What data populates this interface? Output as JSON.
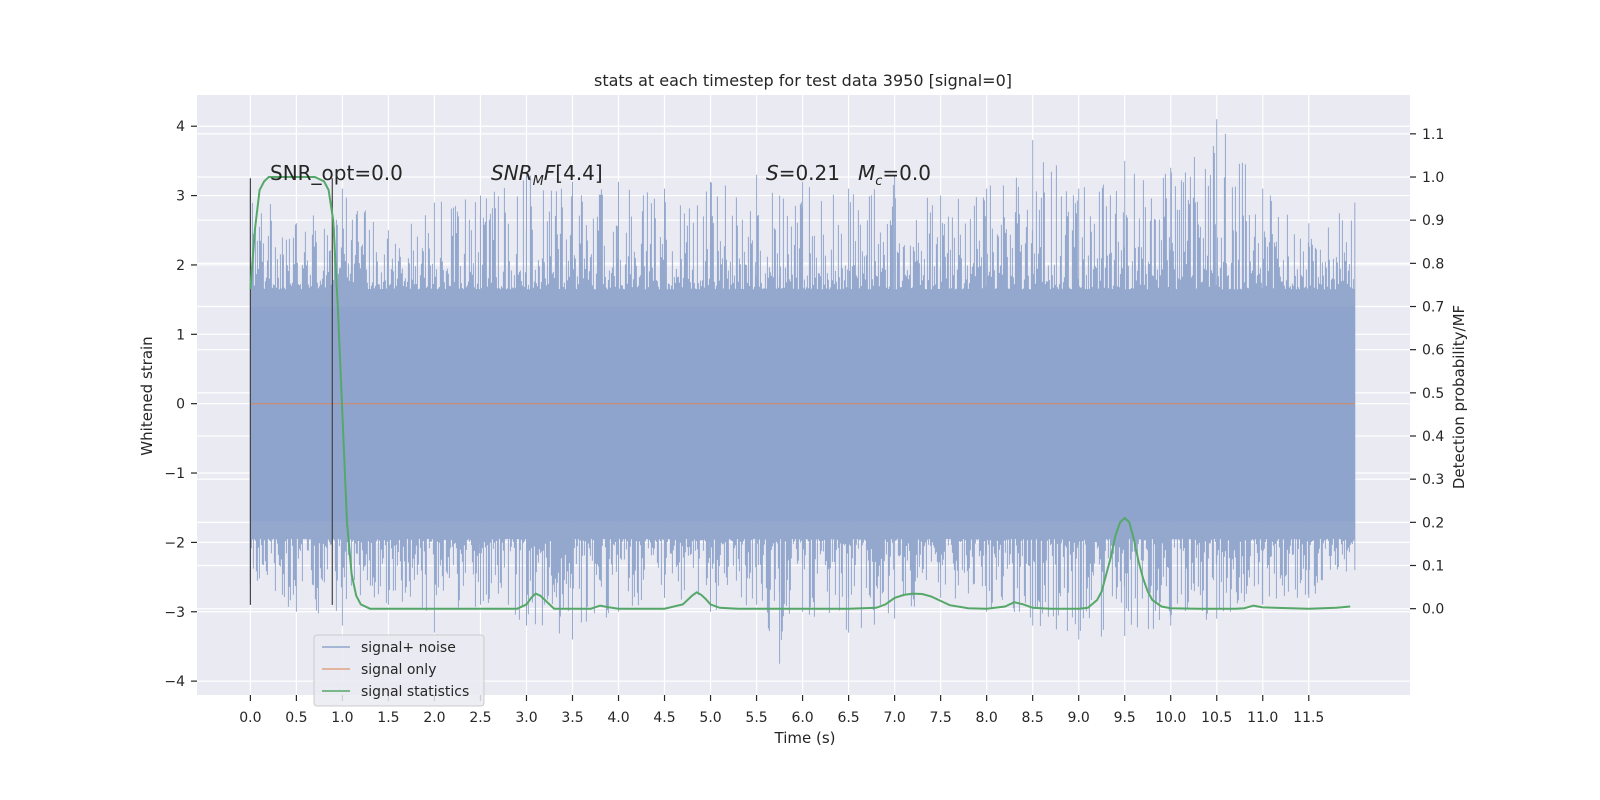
{
  "chart_data": {
    "type": "line",
    "title": "stats at each timestep for test data 3950 [signal=0]",
    "xlabel": "Time (s)",
    "ylabel_left": "Whitened strain",
    "ylabel_right": "Detection probability/MF",
    "xlim": [
      -0.58,
      12.6
    ],
    "ylim_left": [
      -4.2,
      4.45
    ],
    "ylim_right": [
      -0.2,
      1.19
    ],
    "x_ticks": [
      "0.0",
      "0.5",
      "1.0",
      "1.5",
      "2.0",
      "2.5",
      "3.0",
      "3.5",
      "4.0",
      "4.5",
      "5.0",
      "5.5",
      "6.0",
      "6.5",
      "7.0",
      "7.5",
      "8.0",
      "8.5",
      "9.0",
      "9.5",
      "10.0",
      "10.5",
      "11.0",
      "11.5"
    ],
    "y_ticks_left": [
      "−4",
      "−3",
      "−2",
      "−1",
      "0",
      "1",
      "2",
      "3",
      "4"
    ],
    "y_ticks_right": [
      "0.0",
      "0.1",
      "0.2",
      "0.3",
      "0.4",
      "0.5",
      "0.6",
      "0.7",
      "0.8",
      "0.9",
      "1.0",
      "1.1"
    ],
    "grid": true,
    "legend_position": "lower-left",
    "annotations": {
      "snr_opt": "SNR_opt=0.0",
      "snr_mf": "[4.4]",
      "s": "=0.21",
      "mc": "=0.0"
    },
    "vertical_markers_s": [
      0.0,
      0.89
    ],
    "noise_band": {
      "time_range": [
        0.0,
        12.0
      ],
      "typical_range": [
        -1.7,
        1.4
      ],
      "extreme_max": 4.1,
      "extreme_min": -3.75
    },
    "series": [
      {
        "name": "signal+ noise",
        "axis": "left",
        "color": "#8fa4cb",
        "x": [
          0.0,
          0.5,
          1.0,
          1.5,
          2.0,
          2.5,
          3.0,
          3.5,
          4.0,
          4.5,
          5.0,
          5.5,
          5.75,
          6.0,
          6.5,
          7.0,
          7.5,
          8.0,
          8.5,
          9.0,
          9.5,
          10.0,
          10.5,
          11.0,
          11.5,
          12.0
        ],
        "max": [
          3.1,
          2.6,
          3.1,
          2.5,
          2.9,
          3.0,
          3.3,
          3.2,
          3.2,
          3.1,
          3.2,
          3.3,
          3.0,
          3.2,
          3.1,
          3.3,
          3.0,
          3.1,
          3.8,
          3.1,
          3.5,
          3.4,
          4.1,
          3.1,
          2.6,
          2.9
        ],
        "min": [
          -2.6,
          -3.0,
          -3.2,
          -2.9,
          -3.3,
          -2.9,
          -3.2,
          -3.4,
          -3.0,
          -2.8,
          -3.0,
          -2.9,
          -3.75,
          -3.0,
          -3.3,
          -3.1,
          -2.8,
          -3.0,
          -3.2,
          -3.4,
          -3.35,
          -3.2,
          -3.1,
          -2.9,
          -2.8,
          -2.4
        ]
      },
      {
        "name": "signal only",
        "axis": "left",
        "color": "#dd8452",
        "x": [
          0.0,
          12.0
        ],
        "y": [
          0.0,
          0.0
        ]
      },
      {
        "name": "signal statistics",
        "axis": "right",
        "color": "#55a868",
        "x": [
          0.0,
          0.05,
          0.1,
          0.15,
          0.2,
          0.3,
          0.5,
          0.7,
          0.8,
          0.85,
          0.9,
          0.95,
          1.0,
          1.05,
          1.1,
          1.15,
          1.2,
          1.3,
          1.5,
          2.0,
          2.5,
          2.9,
          3.0,
          3.05,
          3.1,
          3.15,
          3.2,
          3.3,
          3.5,
          3.7,
          3.8,
          3.9,
          4.0,
          4.5,
          4.7,
          4.8,
          4.85,
          4.9,
          4.95,
          5.0,
          5.1,
          5.3,
          5.5,
          6.0,
          6.5,
          6.8,
          6.9,
          7.0,
          7.1,
          7.2,
          7.3,
          7.4,
          7.5,
          7.6,
          7.8,
          8.0,
          8.2,
          8.3,
          8.4,
          8.5,
          8.7,
          9.0,
          9.1,
          9.2,
          9.25,
          9.3,
          9.35,
          9.4,
          9.45,
          9.5,
          9.55,
          9.6,
          9.65,
          9.7,
          9.75,
          9.8,
          9.9,
          10.0,
          10.3,
          10.5,
          10.7,
          10.8,
          10.9,
          11.0,
          11.5,
          11.8,
          11.95
        ],
        "y": [
          0.74,
          0.88,
          0.97,
          0.99,
          1.0,
          1.0,
          1.0,
          1.0,
          0.99,
          0.97,
          0.9,
          0.7,
          0.45,
          0.2,
          0.08,
          0.03,
          0.01,
          0.0,
          0.0,
          0.0,
          0.0,
          0.0,
          0.01,
          0.025,
          0.035,
          0.03,
          0.02,
          0.0,
          0.0,
          0.0,
          0.007,
          0.003,
          0.0,
          0.0,
          0.01,
          0.03,
          0.038,
          0.032,
          0.022,
          0.01,
          0.002,
          0.0,
          0.0,
          0.0,
          0.0,
          0.002,
          0.01,
          0.025,
          0.032,
          0.035,
          0.034,
          0.028,
          0.018,
          0.008,
          0.001,
          0.0,
          0.005,
          0.015,
          0.01,
          0.002,
          0.0,
          0.0,
          0.002,
          0.02,
          0.04,
          0.08,
          0.12,
          0.17,
          0.2,
          0.21,
          0.2,
          0.16,
          0.11,
          0.07,
          0.04,
          0.02,
          0.005,
          0.001,
          0.0,
          0.0,
          0.0,
          0.001,
          0.007,
          0.003,
          0.0,
          0.002,
          0.005
        ]
      }
    ]
  }
}
